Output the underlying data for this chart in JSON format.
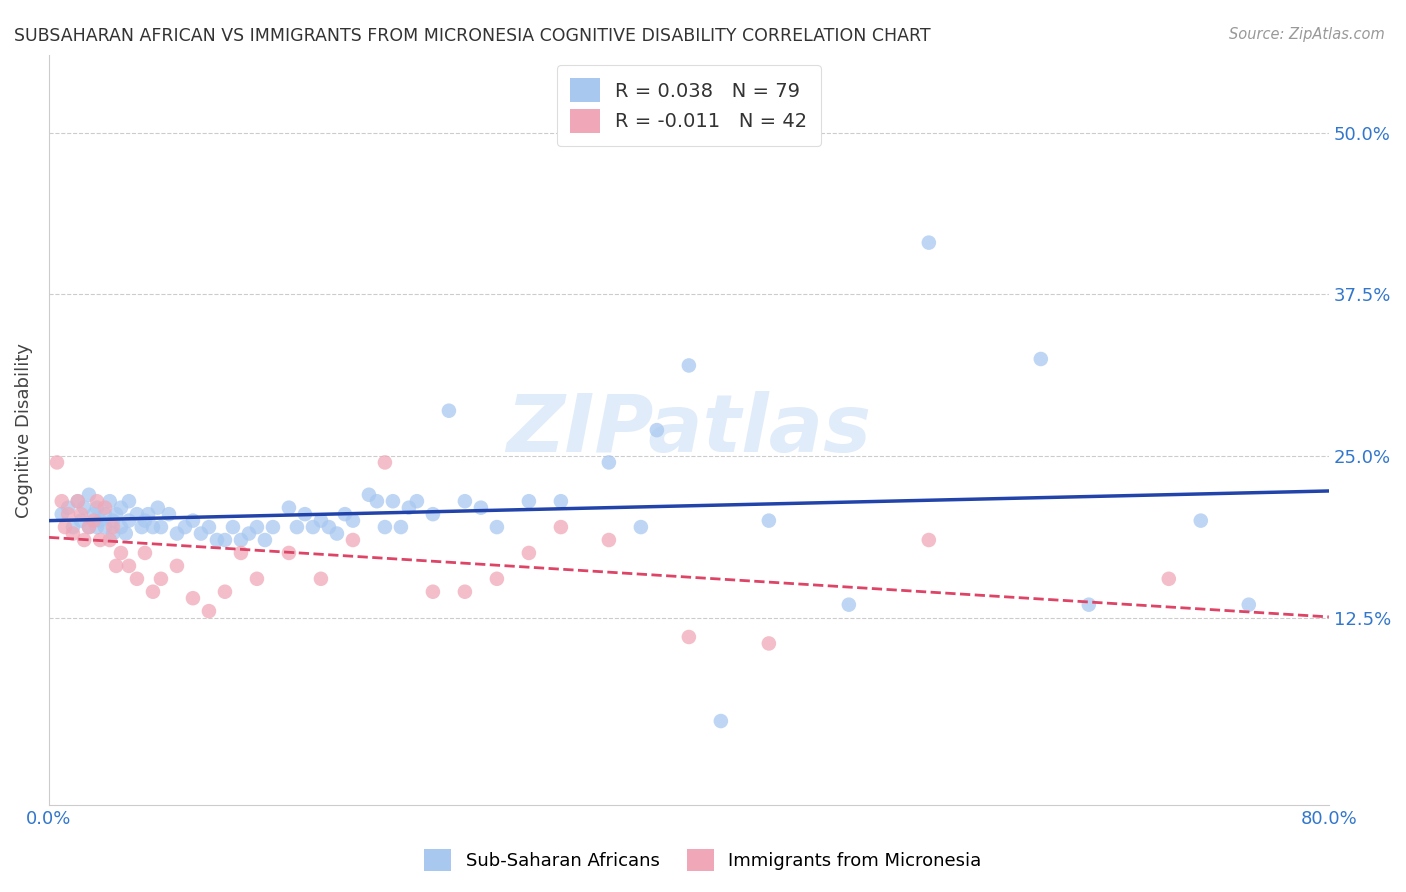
{
  "title": "SUBSAHARAN AFRICAN VS IMMIGRANTS FROM MICRONESIA COGNITIVE DISABILITY CORRELATION CHART",
  "source": "Source: ZipAtlas.com",
  "ylabel": "Cognitive Disability",
  "ytick_labels": [
    "12.5%",
    "25.0%",
    "37.5%",
    "50.0%"
  ],
  "ytick_values": [
    0.125,
    0.25,
    0.375,
    0.5
  ],
  "xlim": [
    0.0,
    0.8
  ],
  "ylim": [
    -0.02,
    0.56
  ],
  "legend1_r": "0.038",
  "legend1_n": "79",
  "legend2_r": "-0.011",
  "legend2_n": "42",
  "blue_color": "#a8c8f0",
  "pink_color": "#f0a8b8",
  "blue_line_color": "#2244aa",
  "pink_line_color": "#dd4466",
  "watermark": "ZIPatlas",
  "blue_scatter_x": [
    0.008,
    0.012,
    0.015,
    0.018,
    0.02,
    0.022,
    0.025,
    0.025,
    0.028,
    0.03,
    0.03,
    0.032,
    0.035,
    0.035,
    0.038,
    0.04,
    0.04,
    0.042,
    0.045,
    0.045,
    0.048,
    0.05,
    0.05,
    0.055,
    0.058,
    0.06,
    0.062,
    0.065,
    0.068,
    0.07,
    0.075,
    0.08,
    0.085,
    0.09,
    0.095,
    0.1,
    0.105,
    0.11,
    0.115,
    0.12,
    0.125,
    0.13,
    0.135,
    0.14,
    0.15,
    0.155,
    0.16,
    0.165,
    0.17,
    0.175,
    0.18,
    0.185,
    0.19,
    0.2,
    0.205,
    0.21,
    0.215,
    0.22,
    0.225,
    0.23,
    0.24,
    0.25,
    0.26,
    0.27,
    0.28,
    0.3,
    0.32,
    0.35,
    0.37,
    0.38,
    0.4,
    0.42,
    0.45,
    0.5,
    0.55,
    0.62,
    0.65,
    0.72,
    0.75
  ],
  "blue_scatter_y": [
    0.205,
    0.21,
    0.195,
    0.215,
    0.2,
    0.21,
    0.195,
    0.22,
    0.205,
    0.195,
    0.21,
    0.2,
    0.195,
    0.205,
    0.215,
    0.2,
    0.19,
    0.205,
    0.195,
    0.21,
    0.19,
    0.2,
    0.215,
    0.205,
    0.195,
    0.2,
    0.205,
    0.195,
    0.21,
    0.195,
    0.205,
    0.19,
    0.195,
    0.2,
    0.19,
    0.195,
    0.185,
    0.185,
    0.195,
    0.185,
    0.19,
    0.195,
    0.185,
    0.195,
    0.21,
    0.195,
    0.205,
    0.195,
    0.2,
    0.195,
    0.19,
    0.205,
    0.2,
    0.22,
    0.215,
    0.195,
    0.215,
    0.195,
    0.21,
    0.215,
    0.205,
    0.285,
    0.215,
    0.21,
    0.195,
    0.215,
    0.215,
    0.245,
    0.195,
    0.27,
    0.32,
    0.045,
    0.2,
    0.135,
    0.415,
    0.325,
    0.135,
    0.2,
    0.135
  ],
  "pink_scatter_x": [
    0.005,
    0.008,
    0.01,
    0.012,
    0.015,
    0.018,
    0.02,
    0.022,
    0.025,
    0.028,
    0.03,
    0.032,
    0.035,
    0.038,
    0.04,
    0.042,
    0.045,
    0.05,
    0.055,
    0.06,
    0.065,
    0.07,
    0.08,
    0.09,
    0.1,
    0.11,
    0.12,
    0.13,
    0.15,
    0.17,
    0.19,
    0.21,
    0.24,
    0.26,
    0.28,
    0.3,
    0.32,
    0.35,
    0.4,
    0.45,
    0.55,
    0.7
  ],
  "pink_scatter_y": [
    0.245,
    0.215,
    0.195,
    0.205,
    0.19,
    0.215,
    0.205,
    0.185,
    0.195,
    0.2,
    0.215,
    0.185,
    0.21,
    0.185,
    0.195,
    0.165,
    0.175,
    0.165,
    0.155,
    0.175,
    0.145,
    0.155,
    0.165,
    0.14,
    0.13,
    0.145,
    0.175,
    0.155,
    0.175,
    0.155,
    0.185,
    0.245,
    0.145,
    0.145,
    0.155,
    0.175,
    0.195,
    0.185,
    0.11,
    0.105,
    0.185,
    0.155
  ]
}
